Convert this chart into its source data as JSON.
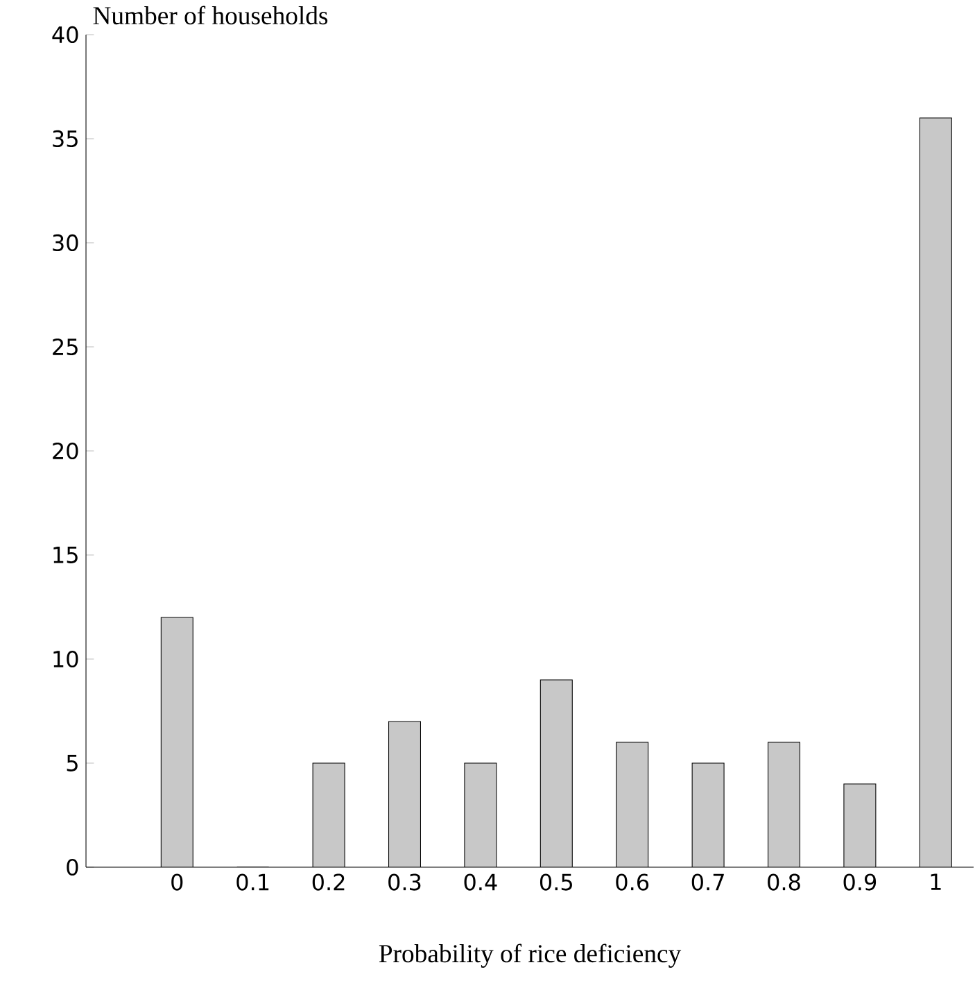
{
  "chart_data": {
    "type": "bar",
    "xlabel": "Probability of rice deficiency",
    "ylabel": "Number of households",
    "categories": [
      "0",
      "0.1",
      "0.2",
      "0.3",
      "0.4",
      "0.5",
      "0.6",
      "0.7",
      "0.8",
      "0.9",
      "1"
    ],
    "values": [
      12,
      0,
      5,
      7,
      5,
      9,
      6,
      5,
      6,
      4,
      36
    ],
    "color": "#c8c8c8",
    "ylim": [
      0,
      40
    ],
    "yticks": [
      0,
      5,
      10,
      15,
      20,
      25,
      30,
      35,
      40
    ],
    "grid": false
  }
}
